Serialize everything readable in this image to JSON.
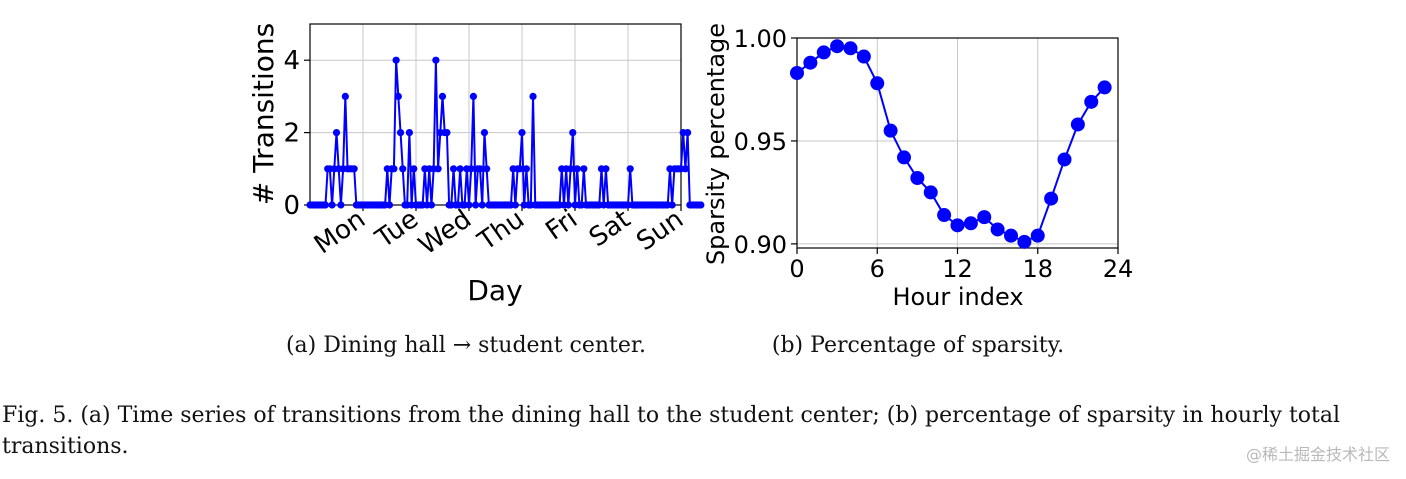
{
  "chart_data": [
    {
      "type": "line",
      "subcaption": "(a) Dining hall → student center.",
      "xlabel": "Day",
      "ylabel": "# Transitions",
      "ylim": [
        0,
        5
      ],
      "xlim": [
        0,
        168
      ],
      "yticks": [
        0,
        2,
        4
      ],
      "x_tick_labels": [
        "Mon",
        "Tue",
        "Wed",
        "Thu",
        "Fri",
        "Sat",
        "Sun"
      ],
      "x_tick_positions": [
        24,
        48,
        72,
        96,
        120,
        144,
        168
      ],
      "grid": true,
      "marker": "circle",
      "color": "#0000ff",
      "series": [
        {
          "x_start": 0,
          "x_step": 1,
          "values": [
            0,
            0,
            0,
            0,
            0,
            0,
            0,
            0,
            1,
            1,
            0,
            1,
            2,
            1,
            0,
            1,
            3,
            1,
            1,
            1,
            1,
            0,
            0,
            0,
            0,
            0,
            0,
            0,
            0,
            0,
            0,
            0,
            0,
            0,
            0,
            1,
            0,
            1,
            1,
            4,
            3,
            2,
            1,
            0,
            0,
            2,
            0,
            1,
            0,
            0,
            0,
            0,
            1,
            0,
            1,
            0,
            1,
            4,
            1,
            2,
            3,
            2,
            2,
            0,
            0,
            1,
            0,
            0,
            1,
            0,
            0,
            1,
            0,
            1,
            3,
            0,
            1,
            1,
            0,
            2,
            1,
            0,
            0,
            0,
            0,
            0,
            0,
            0,
            0,
            0,
            0,
            0,
            1,
            0,
            1,
            1,
            2,
            0,
            1,
            0,
            0,
            3,
            0,
            0,
            0,
            0,
            0,
            0,
            0,
            0,
            0,
            0,
            0,
            0,
            1,
            0,
            1,
            0,
            1,
            2,
            0,
            1,
            0,
            0,
            1,
            0,
            0,
            0,
            0,
            0,
            0,
            0,
            1,
            0,
            1,
            0,
            0,
            0,
            0,
            0,
            0,
            0,
            0,
            0,
            0,
            1,
            0,
            0,
            0,
            0,
            0,
            0,
            0,
            0,
            0,
            0,
            0,
            0,
            0,
            0,
            0,
            0,
            0,
            1,
            0,
            1,
            1,
            1,
            1,
            2,
            1,
            2,
            0,
            0,
            0,
            0,
            0,
            0
          ]
        }
      ]
    },
    {
      "type": "line",
      "subcaption": "(b) Percentage of sparsity.",
      "xlabel": "Hour index",
      "ylabel": "Sparsity percentage",
      "xlim": [
        0,
        24
      ],
      "ylim": [
        0.898,
        1.0
      ],
      "xticks": [
        0,
        6,
        12,
        18,
        24
      ],
      "yticks": [
        0.9,
        0.95,
        1.0
      ],
      "ytick_labels": [
        "0.90",
        "0.95",
        "1.00"
      ],
      "grid": true,
      "marker": "circle",
      "color": "#0000ff",
      "series": [
        {
          "x": [
            0,
            1,
            2,
            3,
            4,
            5,
            6,
            7,
            8,
            9,
            10,
            11,
            12,
            13,
            14,
            15,
            16,
            17,
            18,
            19,
            20,
            21,
            22,
            23
          ],
          "values": [
            0.983,
            0.988,
            0.993,
            0.996,
            0.995,
            0.991,
            0.978,
            0.955,
            0.942,
            0.932,
            0.925,
            0.914,
            0.909,
            0.91,
            0.913,
            0.907,
            0.904,
            0.901,
            0.904,
            0.922,
            0.941,
            0.958,
            0.969,
            0.976
          ]
        }
      ]
    }
  ],
  "caption": {
    "text": "Fig. 5.  (a) Time series of transitions from the dining hall to the student center; (b) percentage of sparsity in hourly total transitions."
  },
  "watermark": "@稀土掘金技术社区"
}
